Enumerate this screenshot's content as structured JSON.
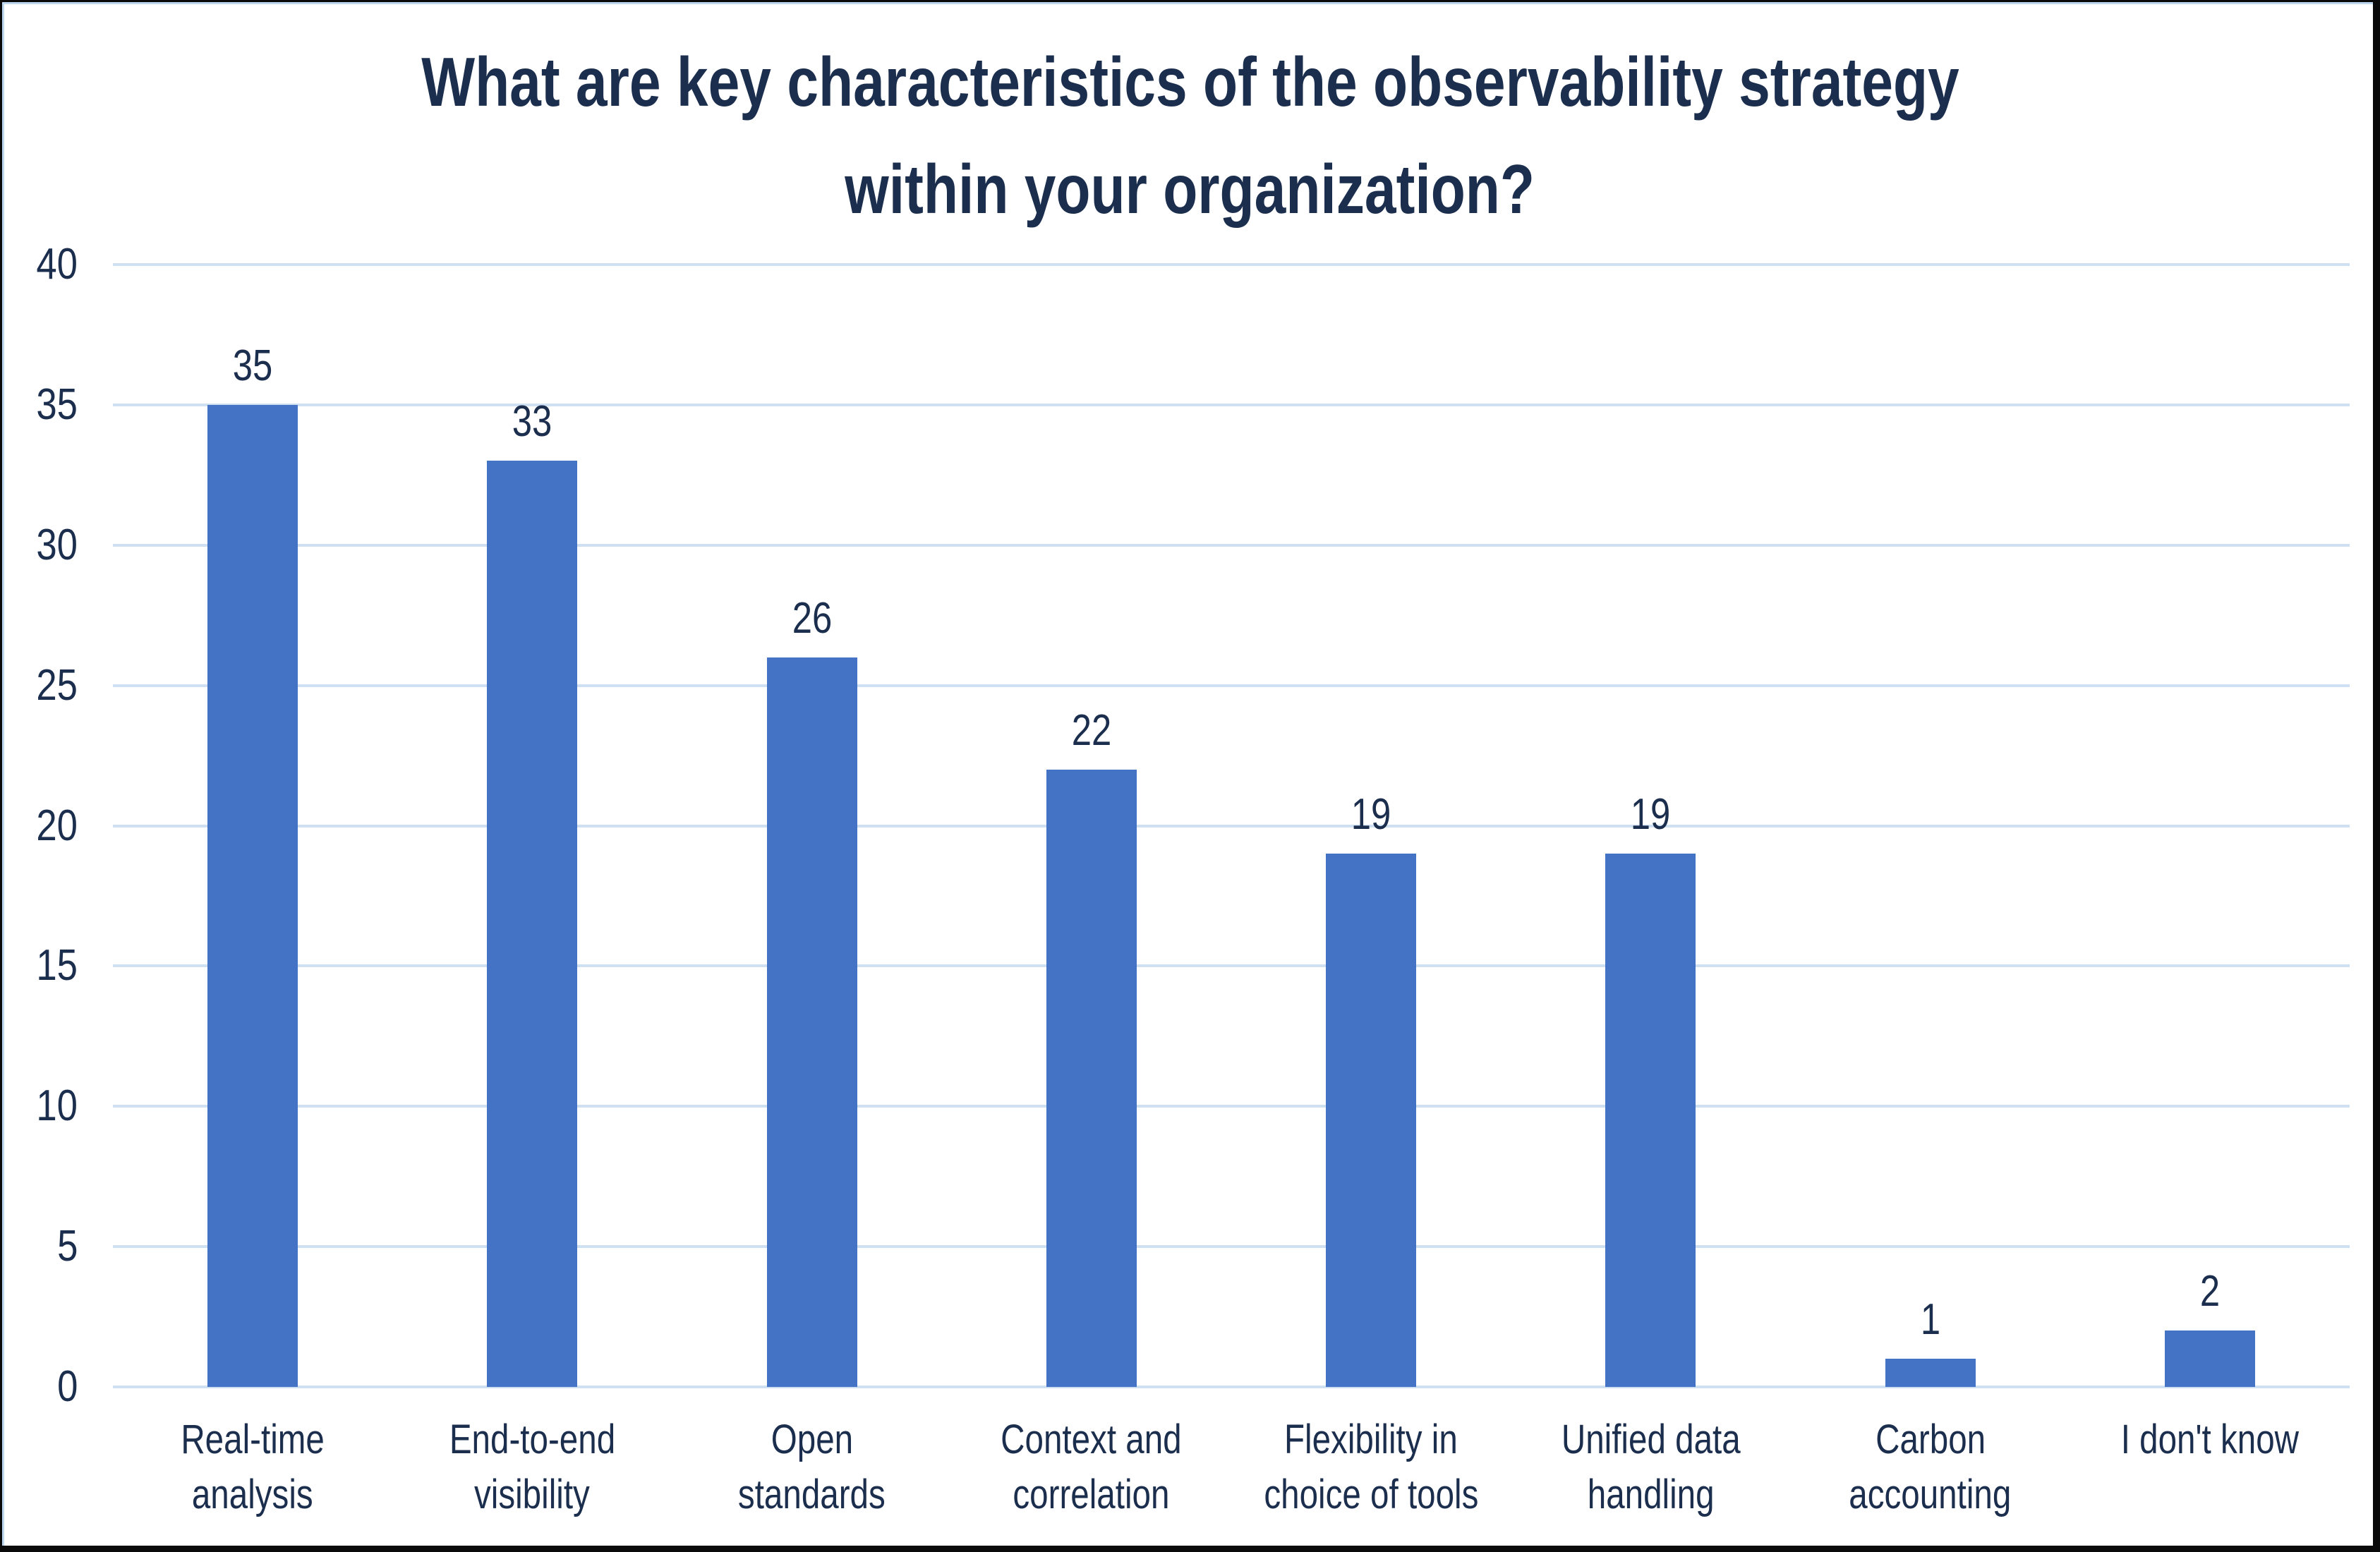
{
  "chart_data": {
    "type": "bar",
    "title": "What are key characteristics of the observability strategy within your organization?",
    "title_lines": {
      "line1": "What are key characteristics of the observability strategy",
      "line2": "within your organization?"
    },
    "categories": [
      "Real-time analysis",
      "End-to-end visibility",
      "Open standards",
      "Context and correlation",
      "Flexibility in choice of tools",
      "Unified data handling",
      "Carbon accounting",
      "I don't know"
    ],
    "category_label_lines": [
      [
        "Real-time",
        "analysis"
      ],
      [
        "End-to-end",
        "visibility"
      ],
      [
        "Open",
        "standards"
      ],
      [
        "Context and",
        "correlation"
      ],
      [
        "Flexibility in",
        "choice of tools"
      ],
      [
        "Unified data",
        "handling"
      ],
      [
        "Carbon",
        "accounting"
      ],
      [
        "I don't know"
      ]
    ],
    "values": [
      35,
      33,
      26,
      22,
      19,
      19,
      1,
      2
    ],
    "data_labels": [
      "35",
      "33",
      "26",
      "22",
      "19",
      "19",
      "1",
      "2"
    ],
    "xlabel": "",
    "ylabel": "",
    "ylim": [
      0,
      40
    ],
    "ytick_step": 5,
    "yticks": [
      0,
      5,
      10,
      15,
      20,
      25,
      30,
      35,
      40
    ],
    "grid": true,
    "legend": false,
    "colors": {
      "bar": "#4472C4",
      "gridline": "#CFE0F3",
      "text": "#1B2E4D",
      "inner_border": "#BDD7EE",
      "outer_border": "#0a0a0a",
      "background": "#FFFFFF"
    }
  }
}
